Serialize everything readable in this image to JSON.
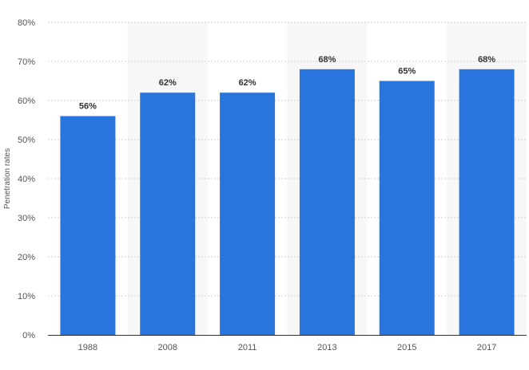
{
  "chart_data": {
    "type": "bar",
    "categories": [
      "1988",
      "2008",
      "2011",
      "2013",
      "2015",
      "2017"
    ],
    "values": [
      56,
      62,
      62,
      68,
      65,
      68
    ],
    "data_labels": [
      "56%",
      "62%",
      "62%",
      "68%",
      "65%",
      "68%"
    ],
    "ylabel": "Penetration rates",
    "xlabel": "",
    "ylim": [
      0,
      80
    ],
    "yticks": [
      0,
      10,
      20,
      30,
      40,
      50,
      60,
      70,
      80
    ],
    "ytick_labels": [
      "0%",
      "10%",
      "20%",
      "30%",
      "40%",
      "50%",
      "60%",
      "70%",
      "80%"
    ],
    "grid": "horizontal-dashed",
    "alternating_column_shading": true,
    "colors": {
      "bar": "#2875de",
      "band": "#f7f7f7",
      "grid": "#d0d0d0",
      "axis": "#333333"
    }
  }
}
